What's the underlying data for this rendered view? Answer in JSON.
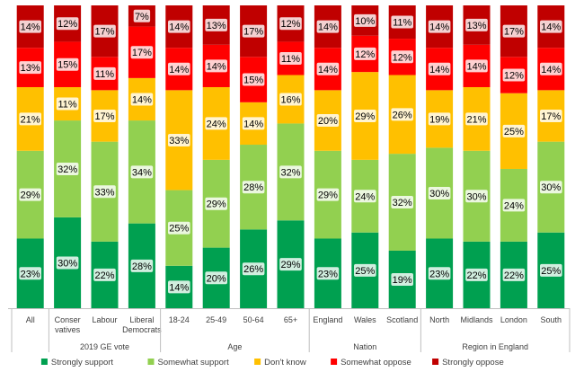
{
  "chart_data": {
    "type": "bar",
    "stacked": true,
    "normalized_percent": true,
    "categories": [
      "All",
      "Conser vatives",
      "Labour",
      "Liberal Democrats",
      "18-24",
      "25-49",
      "50-64",
      "65+",
      "England",
      "Wales",
      "Scotland",
      "North",
      "Midlands",
      "London",
      "South"
    ],
    "category_lines": [
      [
        "All"
      ],
      [
        "Conser",
        "vatives"
      ],
      [
        "Labour"
      ],
      [
        "Liberal",
        "Democrats"
      ],
      [
        "18-24"
      ],
      [
        "25-49"
      ],
      [
        "50-64"
      ],
      [
        "65+"
      ],
      [
        "England"
      ],
      [
        "Wales"
      ],
      [
        "Scotland"
      ],
      [
        "North"
      ],
      [
        "Midlands"
      ],
      [
        "London"
      ],
      [
        "South"
      ]
    ],
    "groups": [
      {
        "label": "",
        "categories": [
          0
        ]
      },
      {
        "label": "2019 GE vote",
        "categories": [
          1,
          2,
          3
        ]
      },
      {
        "label": "Age",
        "categories": [
          4,
          5,
          6,
          7
        ]
      },
      {
        "label": "Nation",
        "categories": [
          8,
          9,
          10
        ]
      },
      {
        "label": "Region in England",
        "categories": [
          11,
          12,
          13,
          14
        ]
      }
    ],
    "series": [
      {
        "name": "Strongly support",
        "color": "#00a050",
        "values": [
          23,
          30,
          22,
          28,
          14,
          20,
          26,
          29,
          23,
          25,
          19,
          23,
          22,
          22,
          25
        ],
        "labels": [
          "23%",
          "30%",
          "22%",
          "28%",
          "14%",
          "20%",
          "26%",
          "29%",
          "23%",
          "25%",
          "19%",
          "23%",
          "22%",
          "22%",
          "25%"
        ]
      },
      {
        "name": "Somewhat support",
        "color": "#92d050",
        "values": [
          29,
          32,
          33,
          34,
          25,
          29,
          28,
          32,
          29,
          24,
          32,
          30,
          30,
          24,
          30
        ],
        "labels": [
          "29%",
          "32%",
          "33%",
          "34%",
          "25%",
          "29%",
          "28%",
          "32%",
          "29%",
          "24%",
          "32%",
          "30%",
          "30%",
          "24%",
          "30%"
        ]
      },
      {
        "name": "Don't know",
        "color": "#ffc000",
        "values": [
          21,
          11,
          17,
          14,
          33,
          24,
          14,
          16,
          20,
          29,
          26,
          19,
          21,
          25,
          17
        ],
        "labels": [
          "21%",
          "11%",
          "17%",
          "14%",
          "33%",
          "24%",
          "14%",
          "16%",
          "20%",
          "29%",
          "26%",
          "19%",
          "21%",
          "25%",
          "17%"
        ]
      },
      {
        "name": "Somewhat oppose",
        "color": "#ff0000",
        "values": [
          13,
          15,
          11,
          17,
          14,
          14,
          15,
          11,
          14,
          12,
          12,
          14,
          14,
          12,
          14
        ],
        "labels": [
          "13%",
          "15%",
          "11%",
          "17%",
          "14%",
          "14%",
          "15%",
          "11%",
          "14%",
          "12%",
          "12%",
          "14%",
          "14%",
          "12%",
          "14%"
        ]
      },
      {
        "name": "Strongly oppose",
        "color": "#c00000",
        "values": [
          14,
          12,
          17,
          7,
          14,
          13,
          17,
          12,
          14,
          10,
          11,
          14,
          13,
          17,
          14
        ],
        "labels": [
          "14%",
          "12%",
          "17%",
          "7%",
          "14%",
          "13%",
          "17%",
          "12%",
          "14%",
          "10%",
          "11%",
          "14%",
          "13%",
          "17%",
          "14%"
        ]
      }
    ],
    "ylim": [
      0,
      100
    ],
    "legend_position": "bottom",
    "title": "",
    "xlabel": "",
    "ylabel": ""
  }
}
